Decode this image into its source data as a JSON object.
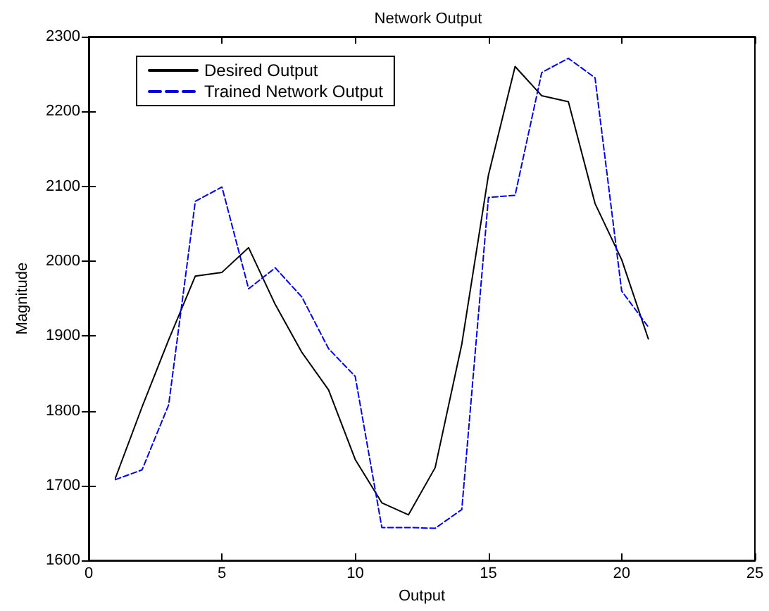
{
  "chart_data": {
    "type": "line",
    "title": "Network Output",
    "xlabel": "Output",
    "ylabel": "Magnitude",
    "x": [
      1,
      2,
      3,
      4,
      5,
      6,
      7,
      8,
      9,
      10,
      11,
      12,
      13,
      14,
      15,
      16,
      17,
      18,
      19,
      20,
      21
    ],
    "series": [
      {
        "name": "Desired Output",
        "color": "#000000",
        "line_style": "solid",
        "values": [
          1710,
          1805,
          1895,
          1980,
          1985,
          2018,
          1942,
          1878,
          1828,
          1735,
          1677,
          1661,
          1724,
          1889,
          2115,
          2260,
          2221,
          2213,
          2077,
          2002,
          1896
        ]
      },
      {
        "name": "Trained Network Output",
        "color": "#0000ff",
        "line_style": "dashed",
        "values": [
          1708,
          1721,
          1808,
          2080,
          2099,
          1963,
          1991,
          1952,
          1883,
          1846,
          1644,
          1644,
          1643,
          1668,
          2085,
          2088,
          2252,
          2271,
          2245,
          1960,
          1912
        ]
      }
    ],
    "xlim": [
      0,
      25
    ],
    "xticks": [
      0,
      5,
      10,
      15,
      20,
      25
    ],
    "ylim": [
      1600,
      2300
    ],
    "yticks": [
      1600,
      1700,
      1800,
      1900,
      2000,
      2100,
      2200,
      2300
    ],
    "grid": false,
    "legend": "top left",
    "marker": "none"
  }
}
